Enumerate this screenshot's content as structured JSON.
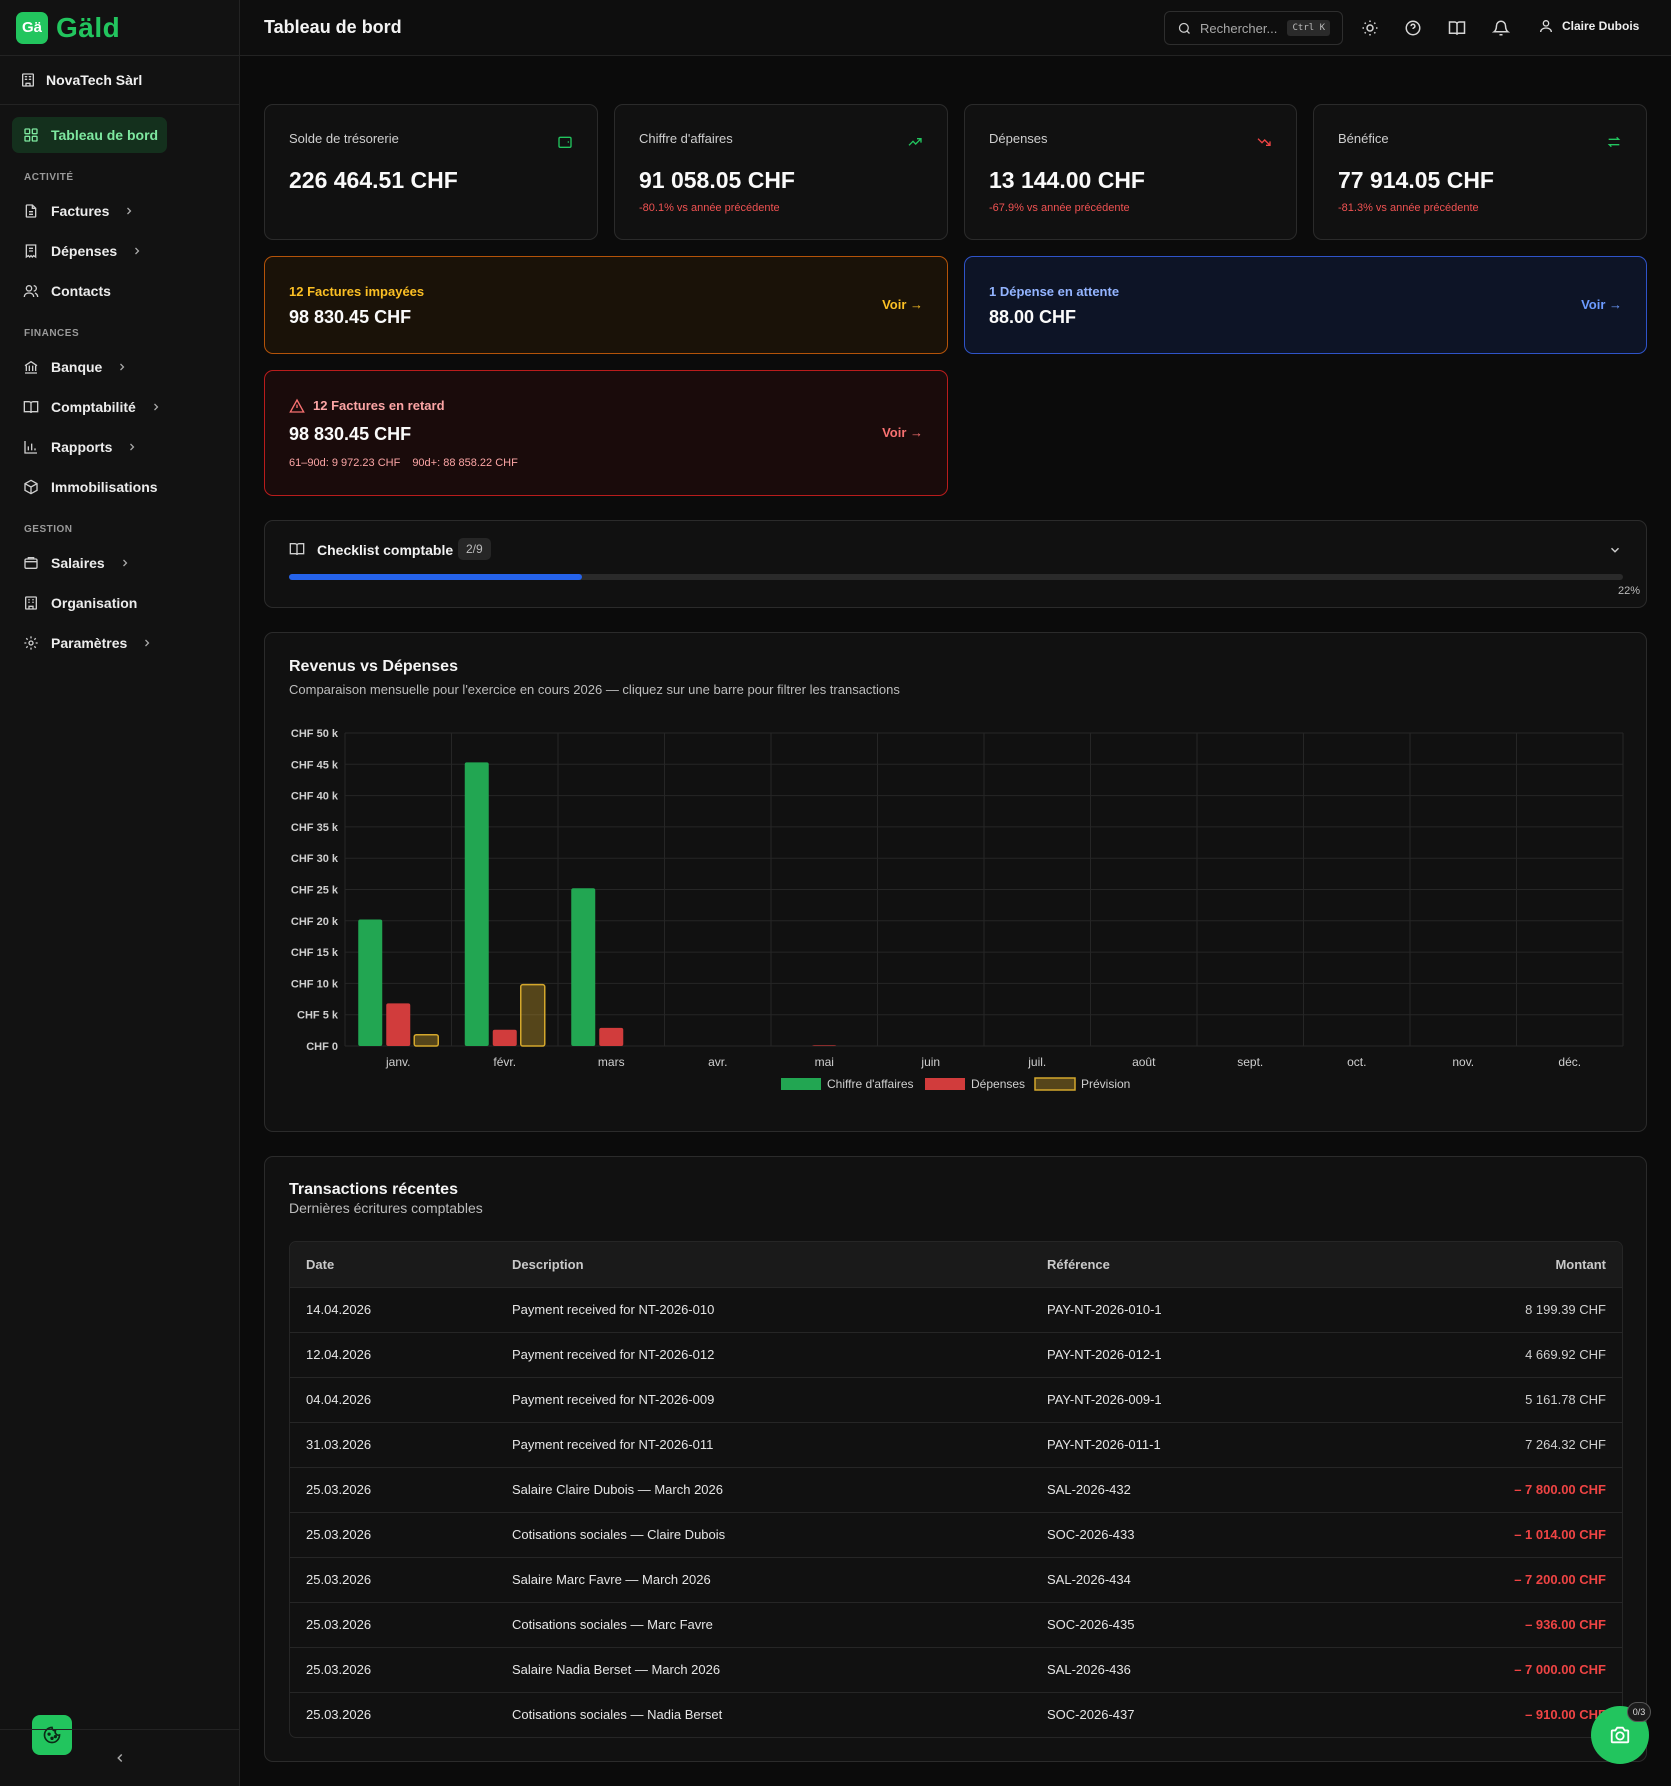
{
  "app": {
    "logo_mark": "Gä",
    "logo_text": "Gäld"
  },
  "org": {
    "name": "NovaTech Sàrl"
  },
  "sidebar": {
    "dashboard": "Tableau de bord",
    "sections": {
      "activite": "ACTIVITÉ",
      "finances": "FINANCES",
      "gestion": "GESTION"
    },
    "items": {
      "factures": "Factures",
      "depenses": "Dépenses",
      "contacts": "Contacts",
      "banque": "Banque",
      "comptabilite": "Comptabilité",
      "rapports": "Rapports",
      "immobilisations": "Immobilisations",
      "salaires": "Salaires",
      "organisation": "Organisation",
      "parametres": "Paramètres"
    }
  },
  "header": {
    "title": "Tableau de bord",
    "search_placeholder": "Rechercher...",
    "search_shortcut": "Ctrl K",
    "user_name": "Claire Dubois"
  },
  "stats": [
    {
      "label": "Solde de trésorerie",
      "value": "226 464.51 CHF",
      "delta": "",
      "icon": "wallet-icon",
      "color": "#22c55e"
    },
    {
      "label": "Chiffre d'affaires",
      "value": "91 058.05 CHF",
      "delta": "-80.1% vs année précédente",
      "icon": "trending-up-icon",
      "color": "#22c55e"
    },
    {
      "label": "Dépenses",
      "value": "13 144.00 CHF",
      "delta": "-67.9% vs année précédente",
      "icon": "trending-down-icon",
      "color": "#ef4444"
    },
    {
      "label": "Bénéfice",
      "value": "77 914.05 CHF",
      "delta": "-81.3% vs année précédente",
      "icon": "arrows-exchange-icon",
      "color": "#22c55e"
    }
  ],
  "alerts": {
    "unpaid": {
      "title": "12 Factures impayées",
      "value": "98 830.45 CHF",
      "action": "Voir →"
    },
    "pending": {
      "title": "1 Dépense en attente",
      "value": "88.00 CHF",
      "action": "Voir →"
    },
    "overdue": {
      "title": "12 Factures en retard",
      "value": "98 830.45 CHF",
      "action": "Voir →",
      "bucket1": "61–90d: 9 972.23 CHF",
      "bucket2": "90d+: 88 858.22 CHF"
    }
  },
  "checklist": {
    "title": "Checklist comptable",
    "count": "2/9",
    "percent_label": "22%",
    "progress": 0.22
  },
  "chart_section": {
    "title": "Revenus vs Dépenses",
    "subtitle": "Comparaison mensuelle pour l'exercice en cours 2026 — cliquez sur une barre pour filtrer les transactions"
  },
  "chart_data": {
    "type": "bar",
    "categories": [
      "janv.",
      "févr.",
      "mars",
      "avr.",
      "mai",
      "juin",
      "juil.",
      "août",
      "sept.",
      "oct.",
      "nov.",
      "déc."
    ],
    "series": [
      {
        "name": "Chiffre d'affaires",
        "color": "#22a652",
        "values": [
          20200,
          45300,
          25200,
          0,
          0,
          0,
          0,
          0,
          0,
          0,
          0,
          0
        ]
      },
      {
        "name": "Dépenses",
        "color": "#d13c3c",
        "values": [
          6800,
          2600,
          2900,
          0,
          100,
          0,
          0,
          0,
          0,
          0,
          0,
          0
        ]
      },
      {
        "name": "Prévision",
        "color": "#d4a72c",
        "values": [
          1800,
          9800,
          0,
          0,
          0,
          0,
          0,
          0,
          0,
          0,
          0,
          0
        ]
      }
    ],
    "yticks": [
      "CHF 0",
      "CHF 5 k",
      "CHF 10 k",
      "CHF 15 k",
      "CHF 20 k",
      "CHF 25 k",
      "CHF 30 k",
      "CHF 35 k",
      "CHF 40 k",
      "CHF 45 k",
      "CHF 50 k"
    ],
    "ylim": [
      0,
      50000
    ],
    "grid": true,
    "legend": "bottom-center"
  },
  "transactions": {
    "title": "Transactions récentes",
    "subtitle": "Dernières écritures comptables",
    "columns": {
      "date": "Date",
      "description": "Description",
      "reference": "Référence",
      "amount": "Montant"
    },
    "rows": [
      {
        "date": "14.04.2026",
        "description": "Payment received for NT-2026-010",
        "reference": "PAY-NT-2026-010-1",
        "amount": "8 199.39 CHF",
        "negative": false
      },
      {
        "date": "12.04.2026",
        "description": "Payment received for NT-2026-012",
        "reference": "PAY-NT-2026-012-1",
        "amount": "4 669.92 CHF",
        "negative": false
      },
      {
        "date": "04.04.2026",
        "description": "Payment received for NT-2026-009",
        "reference": "PAY-NT-2026-009-1",
        "amount": "5 161.78 CHF",
        "negative": false
      },
      {
        "date": "31.03.2026",
        "description": "Payment received for NT-2026-011",
        "reference": "PAY-NT-2026-011-1",
        "amount": "7 264.32 CHF",
        "negative": false
      },
      {
        "date": "25.03.2026",
        "description": "Salaire Claire Dubois — March 2026",
        "reference": "SAL-2026-432",
        "amount": "– 7 800.00 CHF",
        "negative": true
      },
      {
        "date": "25.03.2026",
        "description": "Cotisations sociales — Claire Dubois",
        "reference": "SOC-2026-433",
        "amount": "– 1 014.00 CHF",
        "negative": true
      },
      {
        "date": "25.03.2026",
        "description": "Salaire Marc Favre — March 2026",
        "reference": "SAL-2026-434",
        "amount": "– 7 200.00 CHF",
        "negative": true
      },
      {
        "date": "25.03.2026",
        "description": "Cotisations sociales — Marc Favre",
        "reference": "SOC-2026-435",
        "amount": "– 936.00 CHF",
        "negative": true
      },
      {
        "date": "25.03.2026",
        "description": "Salaire Nadia Berset — March 2026",
        "reference": "SAL-2026-436",
        "amount": "– 7 000.00 CHF",
        "negative": true
      },
      {
        "date": "25.03.2026",
        "description": "Cotisations sociales — Nadia Berset",
        "reference": "SOC-2026-437",
        "amount": "– 910.00 CHF",
        "negative": true
      }
    ]
  },
  "widget": {
    "badge": "0/3"
  }
}
